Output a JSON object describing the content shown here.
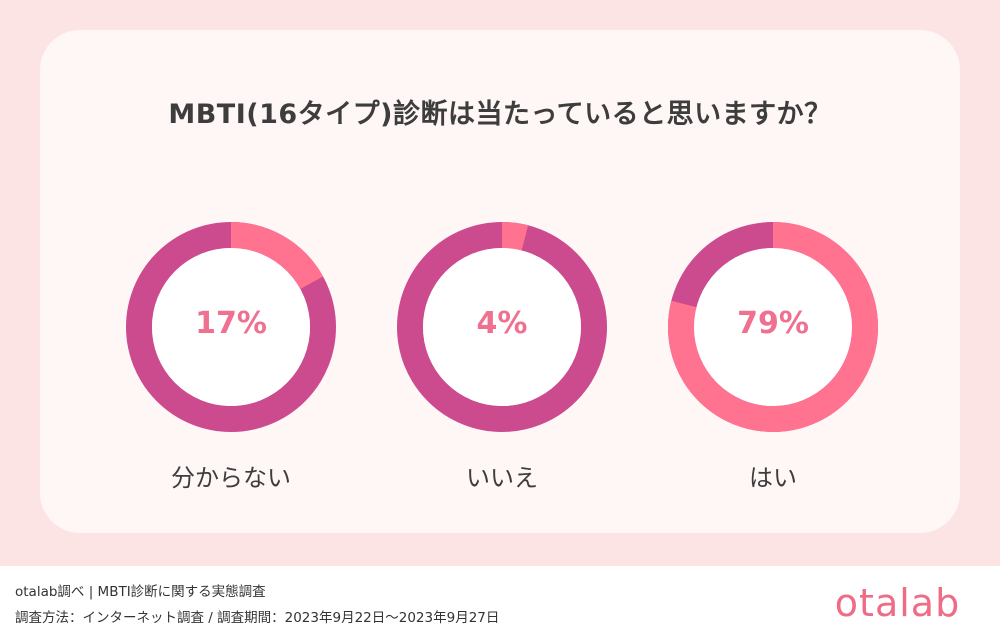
{
  "title": "MBTI(16タイプ)診断は当たっていると思いますか？",
  "chart_data": {
    "type": "pie",
    "title": "MBTI(16タイプ)診断は当たっていると思いますか？",
    "charts": [
      {
        "category": "分からない",
        "value": 17,
        "label": "17%"
      },
      {
        "category": "いいえ",
        "value": 4,
        "label": "4%"
      },
      {
        "category": "はい",
        "value": 79,
        "label": "79%"
      }
    ]
  },
  "colors": {
    "highlight": "#ff7390",
    "remainder": "#cc4b8e",
    "percent_text": "#f0708f"
  },
  "footer": {
    "line1": "otalab調べ | MBTI診断に関する実態調査",
    "line2": "調査方法：インターネット調査 / 調査期間：2023年9月22日〜2023年9月27日"
  },
  "logo": "otalab"
}
